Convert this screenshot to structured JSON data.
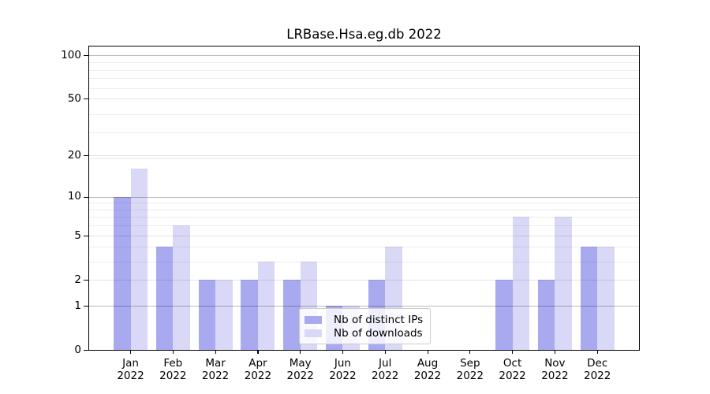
{
  "title": "LRBase.Hsa.eg.db 2022",
  "chart_data": {
    "type": "bar",
    "title": "LRBase.Hsa.eg.db 2022",
    "categories": [
      "Jan 2022",
      "Feb 2022",
      "Mar 2022",
      "Apr 2022",
      "May 2022",
      "Jun 2022",
      "Jul 2022",
      "Aug 2022",
      "Sep 2022",
      "Oct 2022",
      "Nov 2022",
      "Dec 2022"
    ],
    "x_ticks": [
      {
        "month": "Jan",
        "year": "2022"
      },
      {
        "month": "Feb",
        "year": "2022"
      },
      {
        "month": "Mar",
        "year": "2022"
      },
      {
        "month": "Apr",
        "year": "2022"
      },
      {
        "month": "May",
        "year": "2022"
      },
      {
        "month": "Jun",
        "year": "2022"
      },
      {
        "month": "Jul",
        "year": "2022"
      },
      {
        "month": "Aug",
        "year": "2022"
      },
      {
        "month": "Sep",
        "year": "2022"
      },
      {
        "month": "Oct",
        "year": "2022"
      },
      {
        "month": "Nov",
        "year": "2022"
      },
      {
        "month": "Dec",
        "year": "2022"
      }
    ],
    "series": [
      {
        "name": "Nb of distinct IPs",
        "color": "#a9a9f0",
        "values": [
          10,
          4,
          2,
          2,
          2,
          1,
          2,
          0,
          0,
          2,
          2,
          4
        ]
      },
      {
        "name": "Nb of downloads",
        "color": "#d9d9f7",
        "values": [
          16,
          6,
          2,
          3,
          3,
          1,
          4,
          0,
          0,
          7,
          7,
          4
        ]
      }
    ],
    "yscale": "log10(1+v)",
    "y_ticks": [
      0,
      1,
      2,
      5,
      10,
      20,
      50,
      100
    ],
    "y_tick_labels": [
      "0",
      "1",
      "2",
      "5",
      "10",
      "20",
      "50",
      "100"
    ],
    "ylim": [
      0,
      100
    ],
    "grid": true,
    "legend_position": "inside lower-center",
    "xlabel": "",
    "ylabel": ""
  }
}
